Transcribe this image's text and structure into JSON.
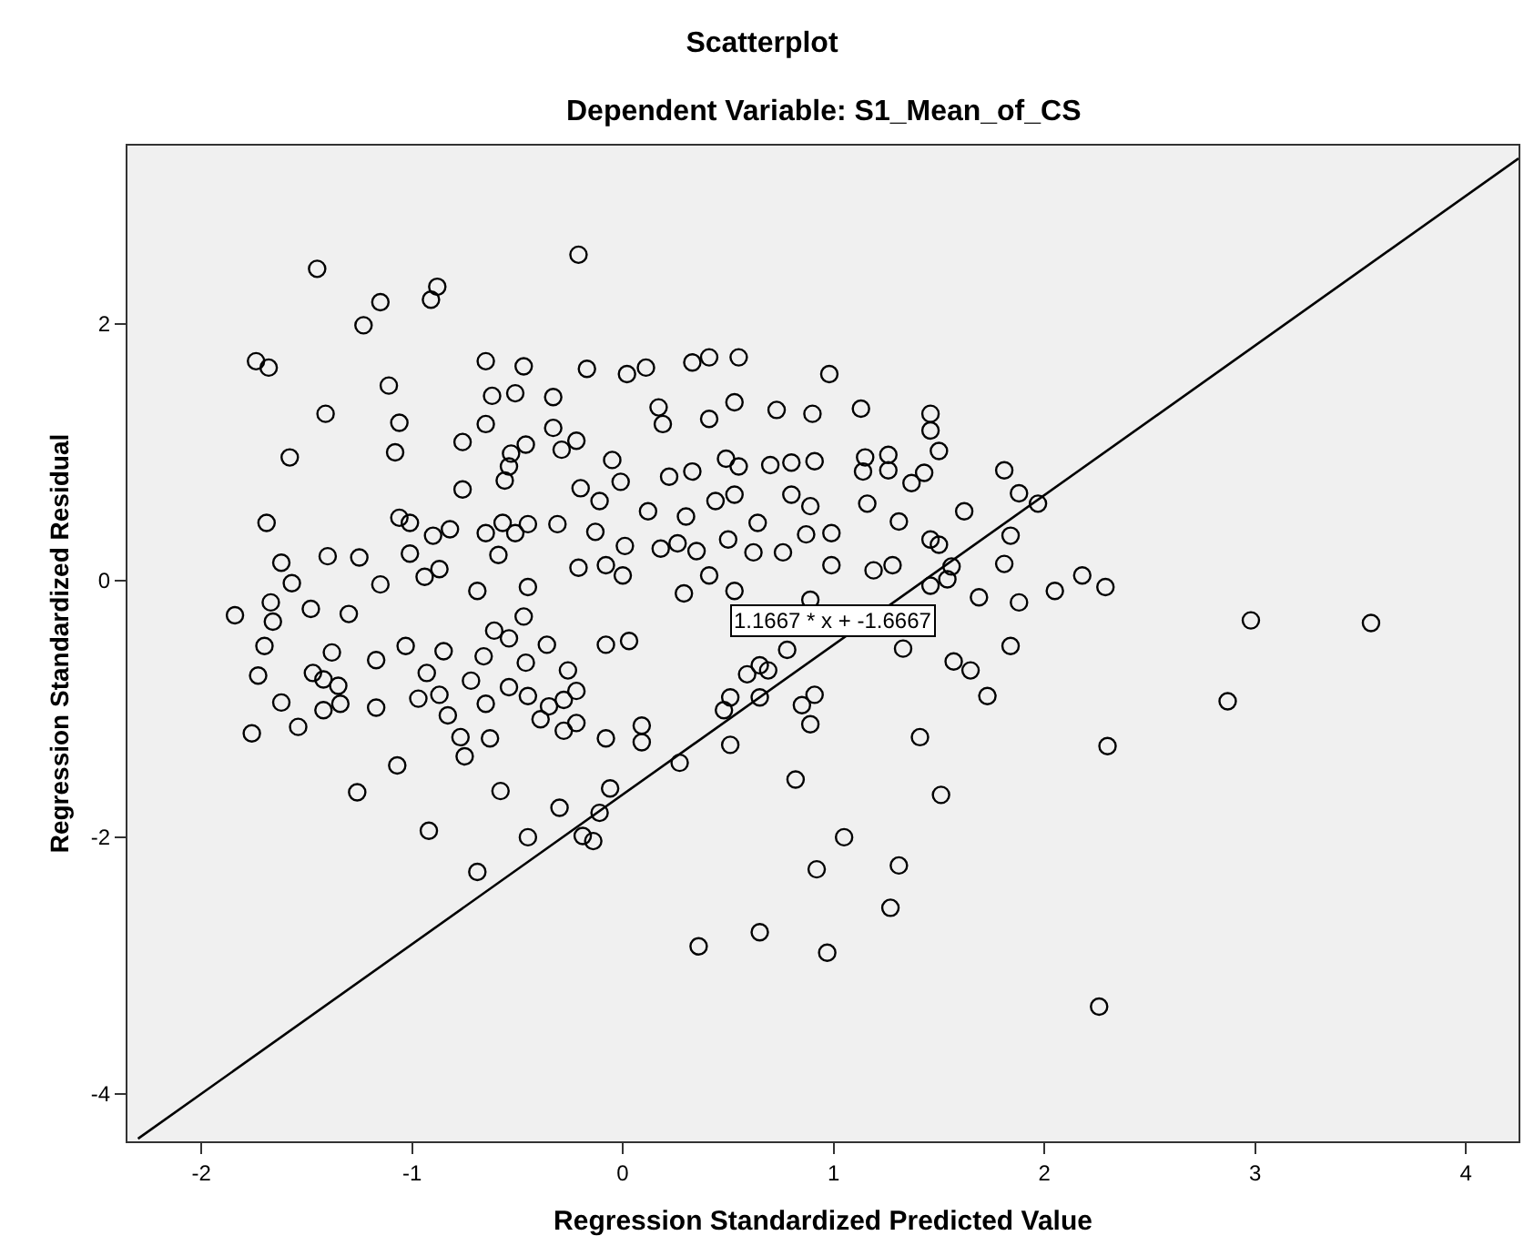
{
  "chart_data": {
    "type": "scatter",
    "title": "Scatterplot",
    "subtitle": "Dependent Variable: S1_Mean_of_CS",
    "xlabel": "Regression Standardized Predicted Value",
    "ylabel": "Regression Standardized Residual",
    "xlim": [
      -2.35,
      4.25
    ],
    "ylim": [
      -4.37,
      3.39
    ],
    "xticks": [
      -2,
      -1,
      0,
      1,
      2,
      3,
      4
    ],
    "yticks": [
      -4,
      -2,
      0,
      2
    ],
    "grid": false,
    "marker": "circle",
    "annotations": [
      {
        "text": "1.1667 * x + -1.6667",
        "x": 1.0,
        "y": -0.5
      }
    ],
    "series": [
      {
        "color": "#000000",
        "x": [
          -1.45,
          -0.21,
          -1.15,
          -1.23,
          -0.88,
          -0.91,
          -1.74,
          -1.68,
          -1.11,
          -1.41,
          -1.58,
          -1.06,
          -1.08,
          -0.65,
          -0.47,
          -0.17,
          0.02,
          0.11,
          0.33,
          0.41,
          0.55,
          0.98,
          -0.62,
          -0.51,
          -0.33,
          -0.65,
          -0.33,
          -0.22,
          -0.29,
          -0.76,
          -0.46,
          -0.53,
          -0.54,
          -0.56,
          -0.76,
          -1.69,
          -1.62,
          -1.57,
          -1.84,
          -1.67,
          -1.48,
          -1.4,
          -1.25,
          -1.15,
          -1.06,
          -1.01,
          -0.9,
          -0.82,
          -1.01,
          -0.94,
          -0.87,
          -0.69,
          -0.65,
          -0.57,
          -0.51,
          -0.45,
          -0.45,
          -0.59,
          -0.31,
          -0.2,
          -0.11,
          -0.05,
          -0.01,
          -0.21,
          -0.08,
          0.0,
          -0.13,
          0.01,
          0.12,
          0.17,
          0.19,
          0.22,
          0.33,
          0.3,
          0.18,
          0.26,
          0.35,
          0.41,
          0.29,
          0.44,
          0.53,
          0.49,
          0.55,
          0.41,
          0.53,
          0.64,
          0.5,
          0.62,
          0.73,
          0.9,
          0.7,
          0.8,
          0.91,
          0.8,
          0.89,
          0.76,
          0.87,
          0.99,
          0.99,
          0.53,
          0.89,
          1.13,
          1.46,
          1.46,
          1.5,
          1.15,
          1.26,
          1.14,
          1.26,
          1.43,
          1.37,
          1.81,
          1.88,
          1.97,
          1.16,
          1.31,
          1.62,
          1.46,
          1.5,
          1.84,
          1.81,
          1.19,
          1.28,
          1.56,
          1.54,
          1.46,
          1.69,
          1.88,
          2.05,
          2.18,
          2.29,
          2.98,
          3.55,
          -1.7,
          -1.73,
          -1.62,
          -1.76,
          -1.54,
          -1.66,
          -1.47,
          -1.42,
          -1.35,
          -1.38,
          -1.42,
          -1.34,
          -1.3,
          -1.17,
          -1.17,
          -1.26,
          -1.07,
          -0.92,
          -0.69,
          -1.03,
          -0.97,
          -0.93,
          -0.85,
          -0.87,
          -0.83,
          -0.77,
          -0.75,
          -0.72,
          -0.65,
          -0.63,
          -0.66,
          -0.61,
          -0.54,
          -0.58,
          -0.46,
          -0.45,
          -0.39,
          -0.35,
          -0.28,
          -0.22,
          -0.26,
          -0.28,
          -0.22,
          -0.36,
          -0.47,
          -0.54,
          -0.3,
          -0.45,
          -0.08,
          0.03,
          -0.08,
          0.09,
          0.09,
          -0.06,
          -0.11,
          -0.19,
          -0.14,
          0.27,
          0.51,
          0.48,
          0.51,
          0.59,
          0.65,
          0.69,
          0.65,
          0.82,
          0.36,
          0.65,
          0.97,
          0.92,
          1.05,
          0.85,
          0.91,
          0.89,
          0.78,
          1.57,
          1.65,
          1.73,
          1.84,
          1.33,
          1.41,
          1.51,
          1.31,
          1.27,
          2.3,
          2.87,
          2.26
        ],
        "values": [
          2.43,
          2.54,
          2.17,
          1.99,
          2.29,
          2.19,
          1.71,
          1.66,
          1.52,
          1.3,
          0.96,
          1.23,
          1.0,
          1.71,
          1.67,
          1.65,
          1.61,
          1.66,
          1.7,
          1.74,
          1.74,
          1.61,
          1.44,
          1.46,
          1.43,
          1.22,
          1.19,
          1.09,
          1.02,
          1.08,
          1.06,
          0.99,
          0.89,
          0.78,
          0.71,
          0.45,
          0.14,
          -0.02,
          -0.27,
          -0.17,
          -0.22,
          0.19,
          0.18,
          -0.03,
          0.49,
          0.45,
          0.35,
          0.4,
          0.21,
          0.03,
          0.09,
          -0.08,
          0.37,
          0.45,
          0.37,
          0.44,
          -0.05,
          0.2,
          0.44,
          0.72,
          0.62,
          0.94,
          0.77,
          0.1,
          0.12,
          0.04,
          0.38,
          0.27,
          0.54,
          1.35,
          1.22,
          0.81,
          0.85,
          0.5,
          0.25,
          0.29,
          0.23,
          0.04,
          -0.1,
          0.62,
          0.67,
          0.95,
          0.89,
          1.26,
          1.39,
          0.45,
          0.32,
          0.22,
          1.33,
          1.3,
          0.9,
          0.92,
          0.93,
          0.67,
          0.58,
          0.22,
          0.36,
          0.37,
          0.12,
          -0.08,
          -0.15,
          1.34,
          1.3,
          1.17,
          1.01,
          0.96,
          0.98,
          0.85,
          0.86,
          0.84,
          0.76,
          0.86,
          0.68,
          0.6,
          0.6,
          0.46,
          0.54,
          0.32,
          0.28,
          0.35,
          0.13,
          0.08,
          0.12,
          0.11,
          0.01,
          -0.04,
          -0.13,
          -0.17,
          -0.08,
          0.04,
          -0.05,
          -0.31,
          -0.33,
          -0.51,
          -0.74,
          -0.95,
          -1.19,
          -1.14,
          -0.32,
          -0.72,
          -0.77,
          -0.82,
          -0.56,
          -1.01,
          -0.96,
          -0.26,
          -0.62,
          -0.99,
          -1.65,
          -1.44,
          -1.95,
          -2.27,
          -0.51,
          -0.92,
          -0.72,
          -0.55,
          -0.89,
          -1.05,
          -1.22,
          -1.37,
          -0.78,
          -0.96,
          -1.23,
          -0.59,
          -0.39,
          -0.45,
          -1.64,
          -0.64,
          -0.9,
          -1.08,
          -0.98,
          -0.93,
          -0.86,
          -0.7,
          -1.17,
          -1.11,
          -0.5,
          -0.28,
          -0.83,
          -1.77,
          -2.0,
          -0.5,
          -0.47,
          -1.23,
          -1.13,
          -1.26,
          -1.62,
          -1.81,
          -1.99,
          -2.03,
          -1.42,
          -1.28,
          -1.01,
          -0.91,
          -0.73,
          -0.66,
          -0.7,
          -0.91,
          -1.55,
          -2.85,
          -2.74,
          -2.9,
          -2.25,
          -2.0,
          -0.97,
          -0.89,
          -1.12,
          -0.54,
          -0.63,
          -0.7,
          -0.9,
          -0.51,
          -0.53,
          -1.22,
          -1.67,
          -2.22,
          -2.55,
          -1.29,
          -0.94,
          -3.32
        ]
      },
      {
        "type": "line",
        "color": "#000000",
        "marker": "none",
        "line_style": "solid",
        "x": [
          -2.3,
          4.25
        ],
        "values": [
          -4.35,
          3.29
        ]
      }
    ]
  }
}
